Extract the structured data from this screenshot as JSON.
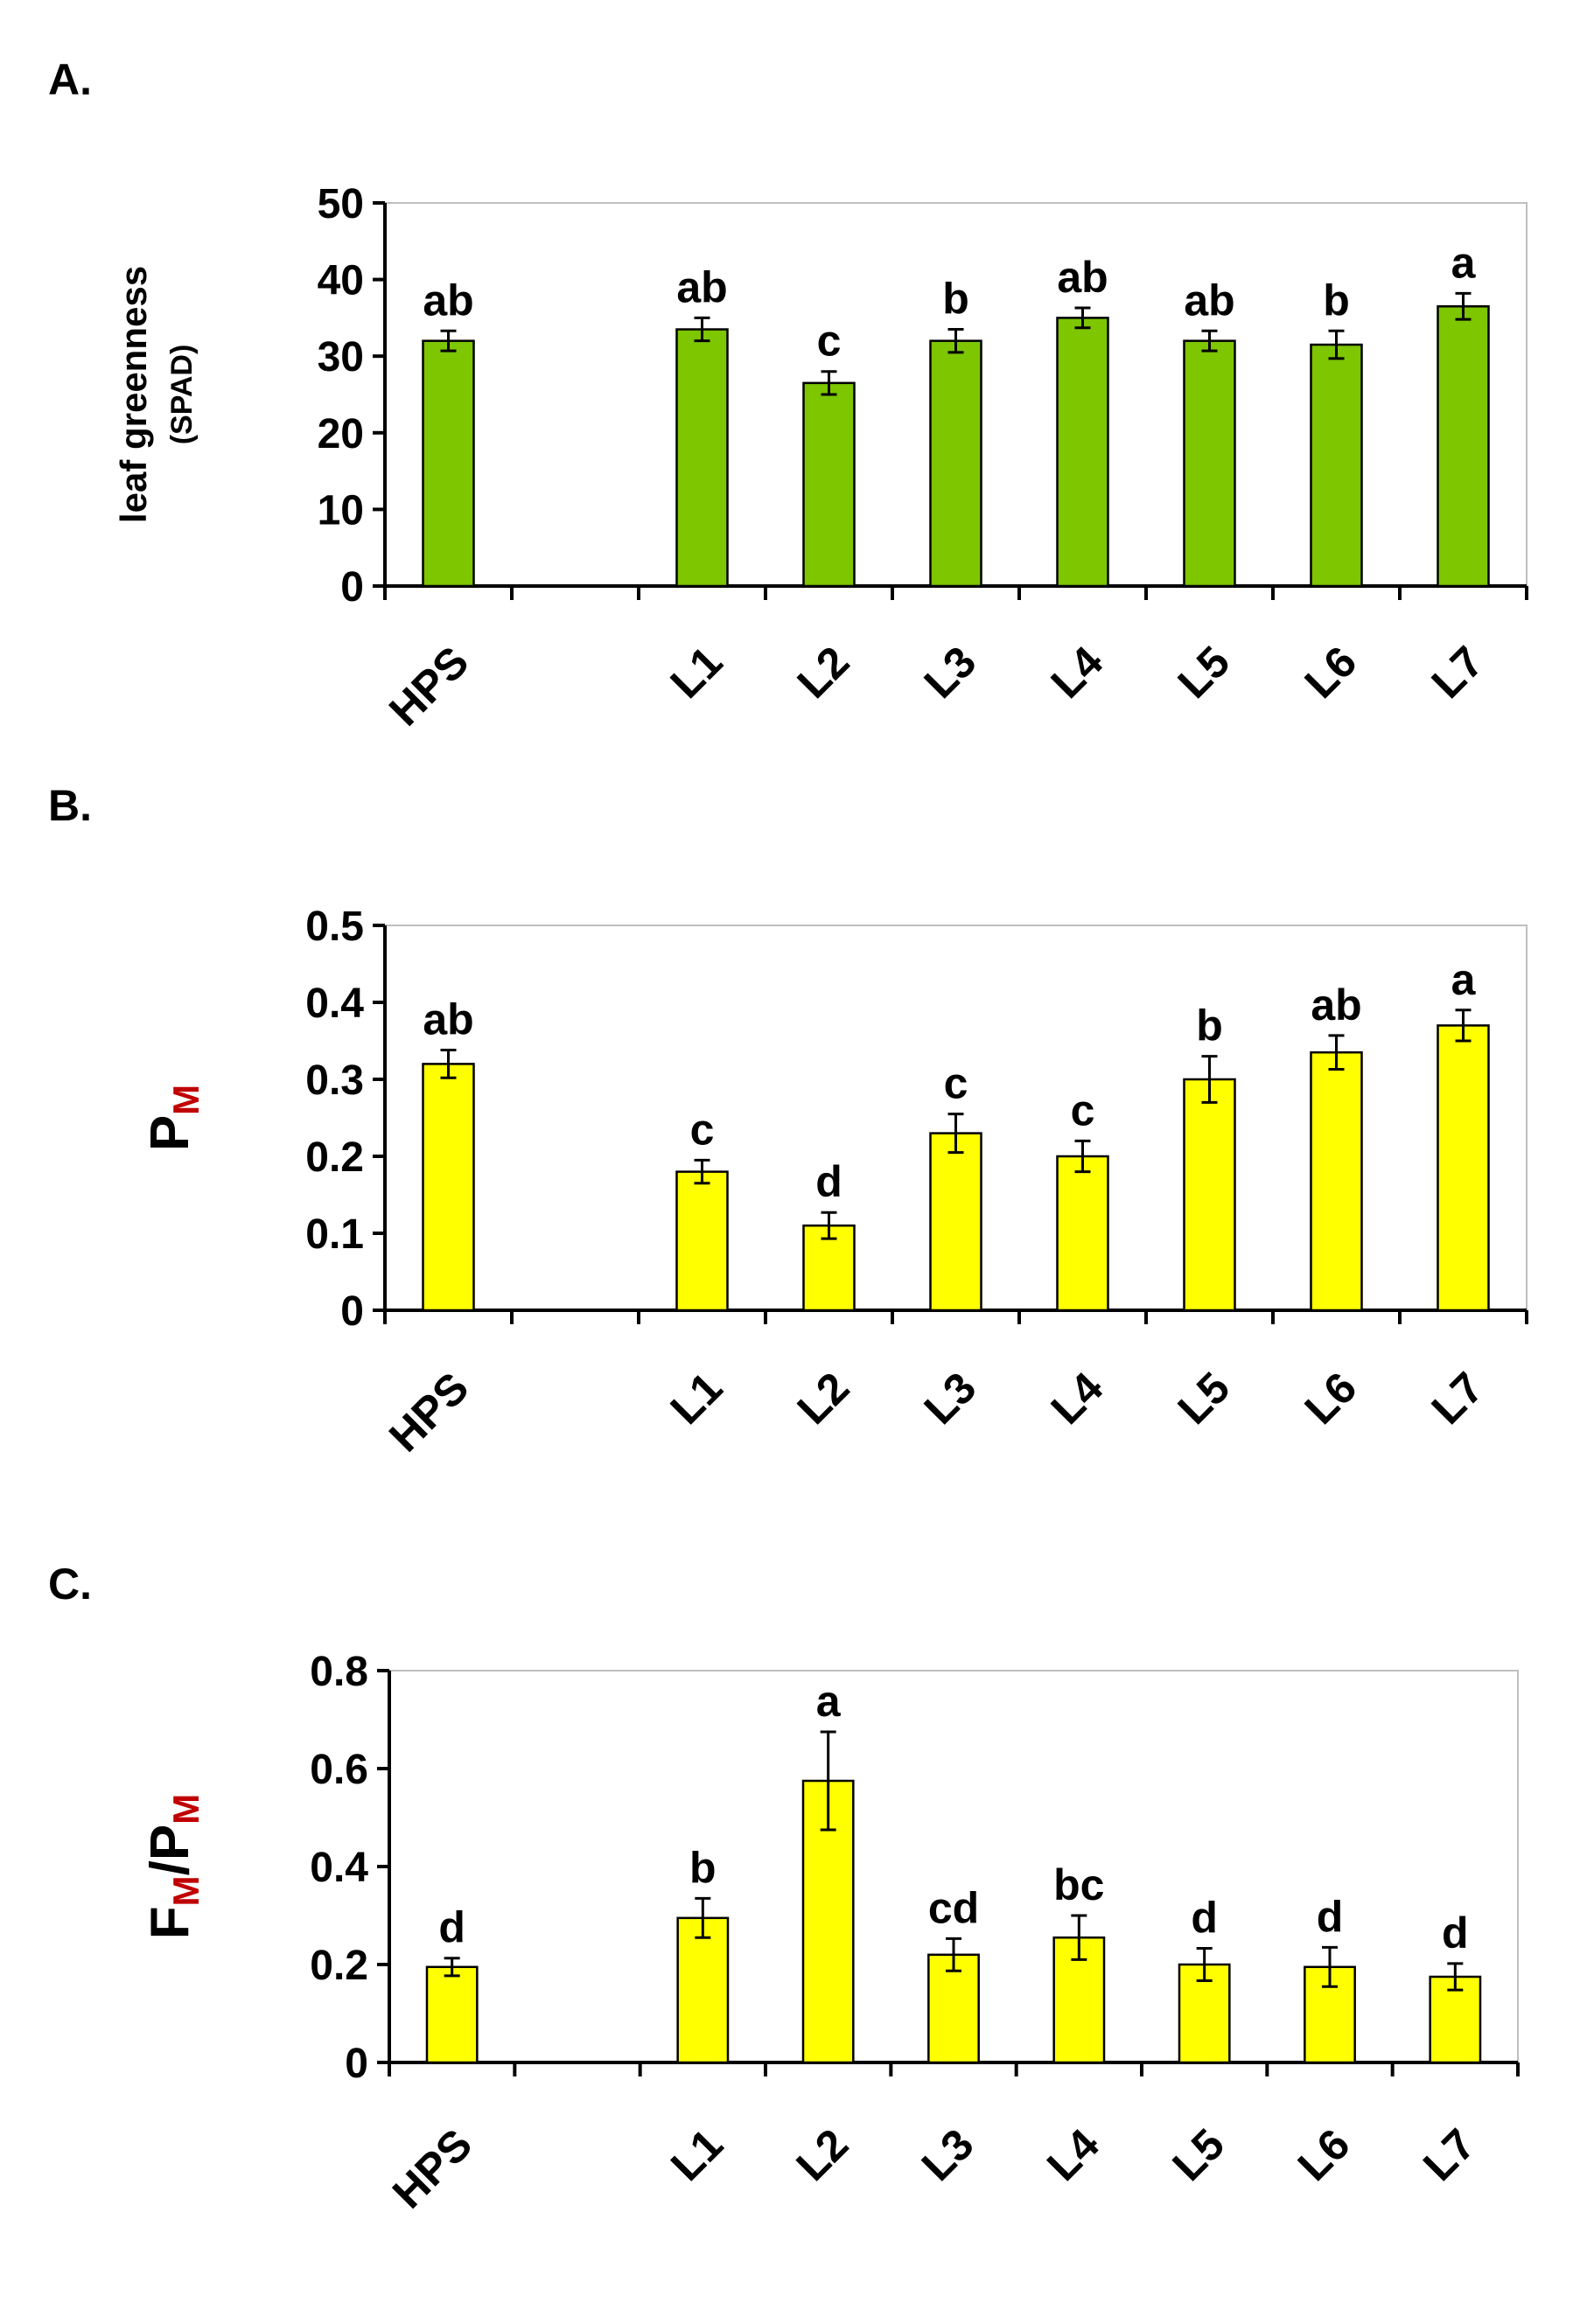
{
  "figure": {
    "panels": [
      "A.",
      "B.",
      "C."
    ]
  },
  "colors": {
    "green": "#7dc600",
    "yellow": "#ffff00",
    "subscript_red": "#c00000",
    "axis": "#000000",
    "frame": "#bfbfbf"
  },
  "chart_data": [
    {
      "panel": "A.",
      "type": "bar",
      "ylabel": "leaf greenness",
      "ylabel_unit": "(SPAD)",
      "ylim": [
        0,
        50
      ],
      "yticks": [
        "0",
        "10",
        "20",
        "30",
        "40",
        "50"
      ],
      "categories": [
        "HPS",
        "",
        "L1",
        "L2",
        "L3",
        "L4",
        "L5",
        "L6",
        "L7"
      ],
      "values": [
        32,
        null,
        33.5,
        26.5,
        32,
        35,
        32,
        31.5,
        36.5
      ],
      "errors": [
        1.3,
        null,
        1.5,
        1.5,
        1.5,
        1.3,
        1.3,
        1.8,
        1.7
      ],
      "significance": [
        "ab",
        "",
        "ab",
        "c",
        "b",
        "ab",
        "ab",
        "b",
        "a"
      ],
      "bar_color": "#7dc600"
    },
    {
      "panel": "B.",
      "type": "bar",
      "ylabel": "P",
      "ylabel_sub": "M",
      "ylim": [
        0,
        0.5
      ],
      "yticks": [
        "0",
        "0.1",
        "0.2",
        "0.3",
        "0.4",
        "0.5"
      ],
      "categories": [
        "HPS",
        "",
        "L1",
        "L2",
        "L3",
        "L4",
        "L5",
        "L6",
        "L7"
      ],
      "values": [
        0.32,
        null,
        0.18,
        0.11,
        0.23,
        0.2,
        0.3,
        0.335,
        0.37
      ],
      "errors": [
        0.018,
        null,
        0.015,
        0.017,
        0.025,
        0.02,
        0.03,
        0.022,
        0.02
      ],
      "significance": [
        "ab",
        "",
        "c",
        "d",
        "c",
        "c",
        "b",
        "ab",
        "a"
      ],
      "bar_color": "#ffff00"
    },
    {
      "panel": "C.",
      "type": "bar",
      "ylabel": "F",
      "ylabel_sub": "M",
      "ylabel_mid": "/P",
      "ylabel_sub2": "M",
      "ylim": [
        0,
        0.8
      ],
      "yticks": [
        "0",
        "0.2",
        "0.4",
        "0.6",
        "0.8"
      ],
      "categories": [
        "HPS",
        "",
        "L1",
        "L2",
        "L3",
        "L4",
        "L5",
        "L6",
        "L7"
      ],
      "values": [
        0.195,
        null,
        0.295,
        0.575,
        0.22,
        0.255,
        0.2,
        0.195,
        0.175
      ],
      "errors": [
        0.018,
        null,
        0.04,
        0.1,
        0.033,
        0.045,
        0.033,
        0.04,
        0.027
      ],
      "significance": [
        "d",
        "",
        "b",
        "a",
        "cd",
        "bc",
        "d",
        "d",
        "d"
      ],
      "bar_color": "#ffff00"
    }
  ]
}
